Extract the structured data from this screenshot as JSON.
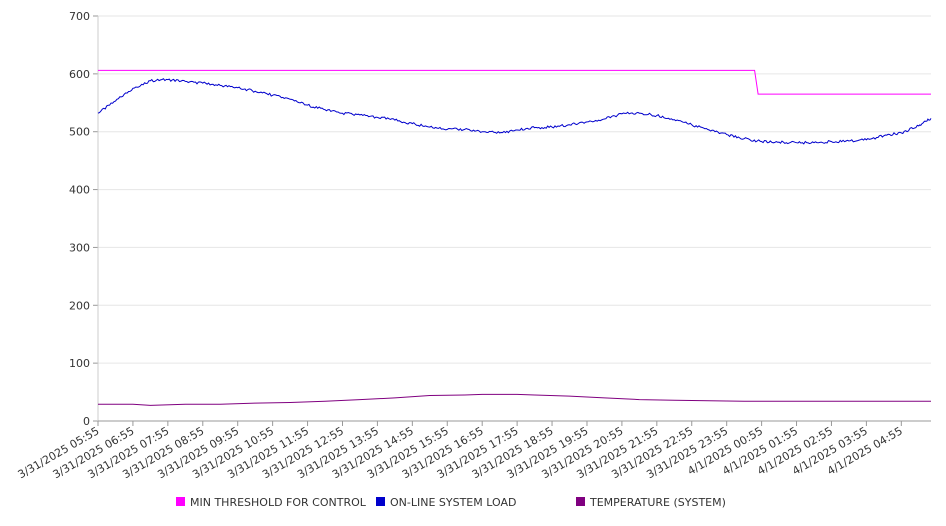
{
  "chart_data": {
    "type": "line",
    "title": "",
    "xlabel": "",
    "ylabel": "",
    "ylim": [
      0,
      700
    ],
    "yticks": [
      0,
      100,
      200,
      300,
      400,
      500,
      600,
      700
    ],
    "grid": true,
    "legend_position": "bottom",
    "categories": [
      "3/31/2025 05:55",
      "3/31/2025 06:55",
      "3/31/2025 07:55",
      "3/31/2025 08:55",
      "3/31/2025 09:55",
      "3/31/2025 10:55",
      "3/31/2025 11:55",
      "3/31/2025 12:55",
      "3/31/2025 13:55",
      "3/31/2025 14:55",
      "3/31/2025 15:55",
      "3/31/2025 16:55",
      "3/31/2025 17:55",
      "3/31/2025 18:55",
      "3/31/2025 19:55",
      "3/31/2025 20:55",
      "3/31/2025 21:55",
      "3/31/2025 22:55",
      "3/31/2025 23:55",
      "4/1/2025 00:55",
      "4/1/2025 01:55",
      "4/1/2025 02:55",
      "4/1/2025 03:55",
      "4/1/2025 04:55"
    ],
    "series": [
      {
        "name": "MIN THRESHOLD FOR CONTROL",
        "color": "#ff00ff",
        "points": [
          [
            0,
            606
          ],
          [
            18.8,
            606
          ],
          [
            18.9,
            565
          ],
          [
            23.85,
            565
          ]
        ]
      },
      {
        "name": "ON-LINE SYSTEM LOAD",
        "color": "#0000cc",
        "points": [
          [
            0,
            532
          ],
          [
            0.5,
            553
          ],
          [
            1.0,
            575
          ],
          [
            1.5,
            588
          ],
          [
            2.0,
            590
          ],
          [
            2.5,
            587
          ],
          [
            3.0,
            584
          ],
          [
            3.5,
            580
          ],
          [
            4.0,
            576
          ],
          [
            4.5,
            570
          ],
          [
            5.0,
            563
          ],
          [
            5.5,
            556
          ],
          [
            6.0,
            546
          ],
          [
            6.5,
            538
          ],
          [
            7.0,
            532
          ],
          [
            7.5,
            529
          ],
          [
            8.0,
            525
          ],
          [
            8.5,
            520
          ],
          [
            9.0,
            514
          ],
          [
            9.5,
            508
          ],
          [
            10.0,
            504
          ],
          [
            10.5,
            504
          ],
          [
            11.0,
            500
          ],
          [
            11.5,
            498
          ],
          [
            12.0,
            503
          ],
          [
            12.5,
            507
          ],
          [
            13.0,
            508
          ],
          [
            13.5,
            512
          ],
          [
            14.0,
            517
          ],
          [
            14.5,
            522
          ],
          [
            15.0,
            531
          ],
          [
            15.5,
            532
          ],
          [
            16.0,
            528
          ],
          [
            16.5,
            521
          ],
          [
            17.0,
            512
          ],
          [
            17.5,
            503
          ],
          [
            18.0,
            495
          ],
          [
            18.5,
            488
          ],
          [
            19.0,
            483
          ],
          [
            19.5,
            482
          ],
          [
            20.0,
            481
          ],
          [
            20.5,
            481
          ],
          [
            21.0,
            483
          ],
          [
            21.5,
            484
          ],
          [
            22.0,
            486
          ],
          [
            22.5,
            493
          ],
          [
            23.0,
            498
          ],
          [
            23.5,
            510
          ],
          [
            23.85,
            523
          ]
        ]
      },
      {
        "name": "TEMPERATURE (SYSTEM)",
        "color": "#800080",
        "points": [
          [
            0,
            29
          ],
          [
            1.0,
            29
          ],
          [
            1.5,
            27
          ],
          [
            2.5,
            29
          ],
          [
            3.5,
            29
          ],
          [
            4.5,
            31
          ],
          [
            5.5,
            32
          ],
          [
            6.5,
            34
          ],
          [
            7.5,
            37
          ],
          [
            8.5,
            40
          ],
          [
            9.5,
            44
          ],
          [
            10.5,
            45
          ],
          [
            11.0,
            46
          ],
          [
            12.0,
            46
          ],
          [
            12.5,
            45
          ],
          [
            13.5,
            43
          ],
          [
            14.5,
            40
          ],
          [
            15.5,
            37
          ],
          [
            16.5,
            36
          ],
          [
            17.5,
            35
          ],
          [
            18.5,
            34
          ],
          [
            19.5,
            34
          ],
          [
            20.5,
            34
          ],
          [
            21.5,
            34
          ],
          [
            22.5,
            34
          ],
          [
            23.85,
            34
          ]
        ]
      }
    ]
  }
}
